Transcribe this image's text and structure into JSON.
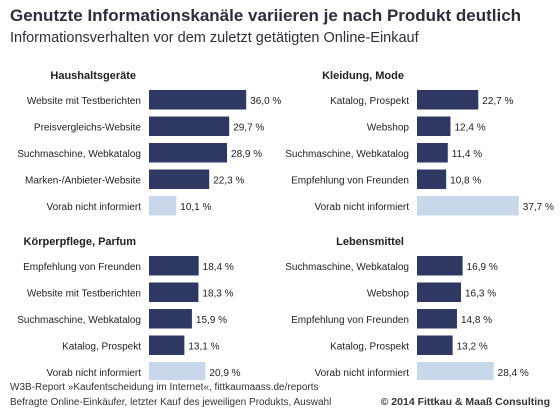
{
  "header": {
    "title": "Genutzte Informationskanäle variieren je nach Produkt deutlich",
    "subtitle": "Informationsverhalten vor dem zuletzt getätigten Online-Einkauf"
  },
  "footer": {
    "source_line1": "W3B-Report »Kaufentscheidung im Internet«, fittkaumaass.de/reports",
    "source_line2": "Befragte Online-Einkäufer, letzter Kauf des jeweiligen Produkts, Auswahl",
    "copyright": "© 2014 Fittkau & Maaß Consulting"
  },
  "colors": {
    "bar_dark": "#2e3862",
    "bar_light": "#c9d7ea",
    "text": "#1f1f1f"
  },
  "chart_data": [
    {
      "type": "bar",
      "orientation": "horizontal",
      "title": "Haushaltsgeräte",
      "categories": [
        "Website mit Testberichten",
        "Preisvergleichs-Website",
        "Suchmaschine, Webkatalog",
        "Marken-/Anbieter-Website",
        "Vorab nicht informiert"
      ],
      "values": [
        36.0,
        29.7,
        28.9,
        22.3,
        10.1
      ],
      "labels": [
        "36,0 %",
        "29,7 %",
        "28,9 %",
        "22,3 %",
        "10,1 %"
      ],
      "highlight_last": true
    },
    {
      "type": "bar",
      "orientation": "horizontal",
      "title": "Kleidung, Mode",
      "categories": [
        "Katalog, Prospekt",
        "Webshop",
        "Suchmaschine, Webkatalog",
        "Empfehlung von Freunden",
        "Vorab nicht informiert"
      ],
      "values": [
        22.7,
        12.4,
        11.4,
        10.8,
        37.7
      ],
      "labels": [
        "22,7 %",
        "12,4 %",
        "11,4 %",
        "10,8 %",
        "37,7 %"
      ],
      "highlight_last": true
    },
    {
      "type": "bar",
      "orientation": "horizontal",
      "title": "Körperpflege, Parfum",
      "categories": [
        "Empfehlung von Freunden",
        "Website mit Testberichten",
        "Suchmaschine, Webkatalog",
        "Katalog, Prospekt",
        "Vorab nicht informiert"
      ],
      "values": [
        18.4,
        18.3,
        15.9,
        13.1,
        20.9
      ],
      "labels": [
        "18,4 %",
        "18,3 %",
        "15,9 %",
        "13,1 %",
        "20,9 %"
      ],
      "highlight_last": true
    },
    {
      "type": "bar",
      "orientation": "horizontal",
      "title": "Lebensmittel",
      "categories": [
        "Suchmaschine, Webkatalog",
        "Webshop",
        "Empfehlung von Freunden",
        "Katalog, Prospekt",
        "Vorab nicht informiert"
      ],
      "values": [
        16.9,
        16.3,
        14.8,
        13.2,
        28.4
      ],
      "labels": [
        "16,9 %",
        "16,3 %",
        "14,8 %",
        "13,2 %",
        "28,4 %"
      ],
      "highlight_last": true
    }
  ]
}
